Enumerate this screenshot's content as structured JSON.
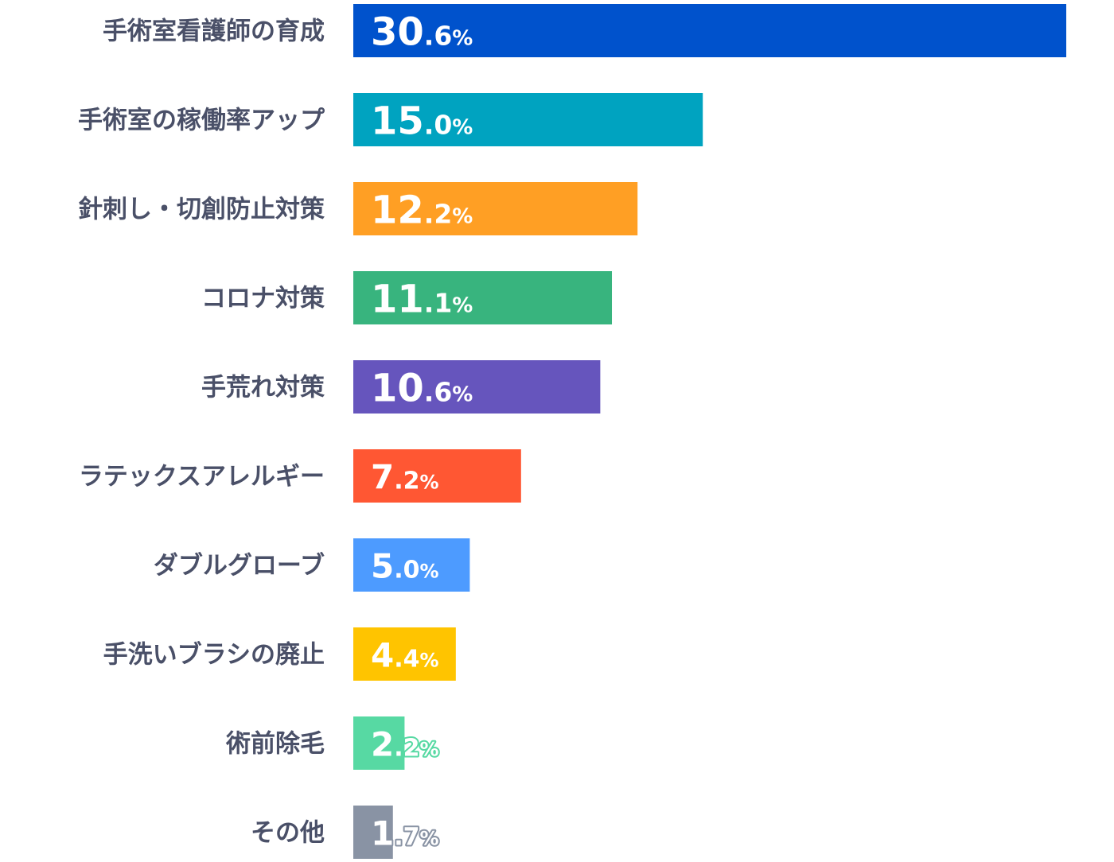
{
  "chart_data": {
    "type": "bar",
    "orientation": "horizontal",
    "unit": "%",
    "xlim": [
      0,
      30.6
    ],
    "grid": false,
    "categories": [
      "手術室看護師の育成",
      "手術室の稼働率アップ",
      "針刺し・切創防止対策",
      "コロナ対策",
      "手荒れ対策",
      "ラテックスアレルギー",
      "ダブルグローブ",
      "手洗いブラシの廃止",
      "術前除毛",
      "その他"
    ],
    "values": [
      30.6,
      15.0,
      12.2,
      11.1,
      10.6,
      7.2,
      5.0,
      4.4,
      2.2,
      1.7
    ],
    "value_labels": [
      "30.6%",
      "15.0%",
      "12.2%",
      "11.1%",
      "10.6%",
      "7.2%",
      "5.0%",
      "4.4%",
      "2.2%",
      "1.7%"
    ],
    "colors": [
      "#0052cc",
      "#00a3c0",
      "#ff9f24",
      "#38b47e",
      "#6655bd",
      "#ff5733",
      "#4d9bff",
      "#ffc400",
      "#57d9a3",
      "#8993a4"
    ]
  }
}
